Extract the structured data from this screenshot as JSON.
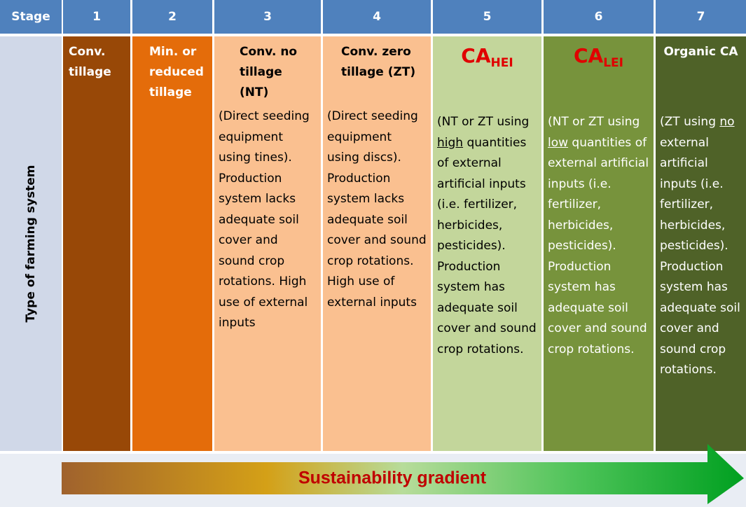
{
  "header": {
    "stage_label": "Stage",
    "stages": [
      "1",
      "2",
      "3",
      "4",
      "5",
      "6",
      "7"
    ]
  },
  "row_label": "Type of farming system",
  "columns": [
    {
      "title": "Conv. tillage"
    },
    {
      "title": "Min. or reduced tillage"
    },
    {
      "title": "Conv. no tillage (NT)",
      "description": "(Direct seeding equipment using tines). Production system lacks adequate soil cover and sound crop rotations. High use of external inputs"
    },
    {
      "title": "Conv. zero tillage (ZT)",
      "description": "(Direct seeding equipment using discs). Production system lacks adequate soil cover and sound crop rotations. High use of external inputs"
    },
    {
      "title": "CA",
      "title_sub": "HEI",
      "description": [
        "(NT or ZT using ",
        "high",
        " quantities of external artificial inputs (i.e. fertilizer, herbicides, pesticides). Production system has adequate soil cover and sound crop rotations."
      ]
    },
    {
      "title": "CA",
      "title_sub": "LEI",
      "description": [
        "(NT or ZT using ",
        "low",
        " quantities of external artificial inputs (i.e. fertilizer, herbicides, pesticides). Production system has adequate soil cover and sound crop rotations."
      ]
    },
    {
      "title": "Organic CA",
      "description": [
        "(ZT using ",
        "no",
        " external artificial inputs (i.e. fertilizer, herbicides, pesticides). Production system has adequate soil cover and sound crop rotations."
      ]
    }
  ],
  "arrow_label": "Sustainability gradient"
}
